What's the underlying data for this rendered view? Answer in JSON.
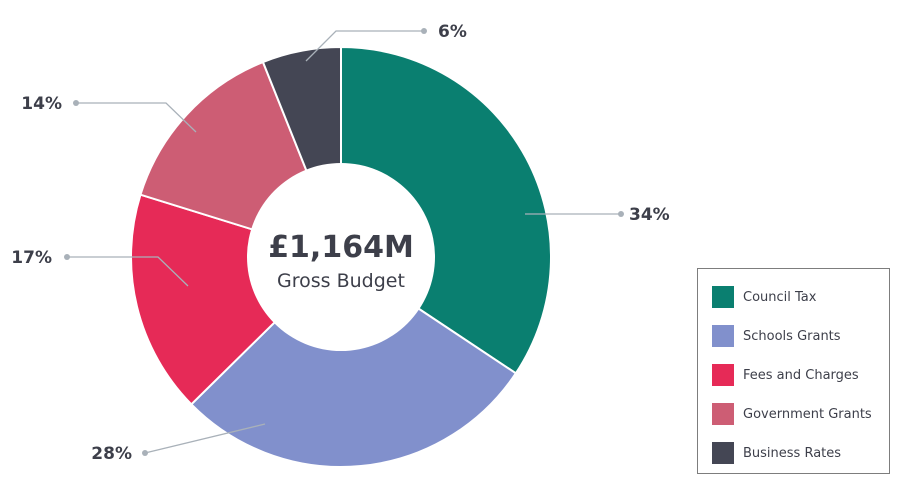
{
  "chart_data": {
    "type": "pie",
    "categories": [
      "Council Tax",
      "Schools Grants",
      "Fees and Charges",
      "Government Grants",
      "Business Rates"
    ],
    "values": [
      34,
      28,
      17,
      14,
      6
    ],
    "value_labels": [
      "34%",
      "28%",
      "17%",
      "14%",
      "6%"
    ],
    "colors": [
      "#0a7f70",
      "#8190cc",
      "#e62a57",
      "#cd5d74",
      "#444654"
    ],
    "center_value": "£1,164M",
    "center_label": "Gross Budget",
    "legend_position": "bottom-right"
  }
}
